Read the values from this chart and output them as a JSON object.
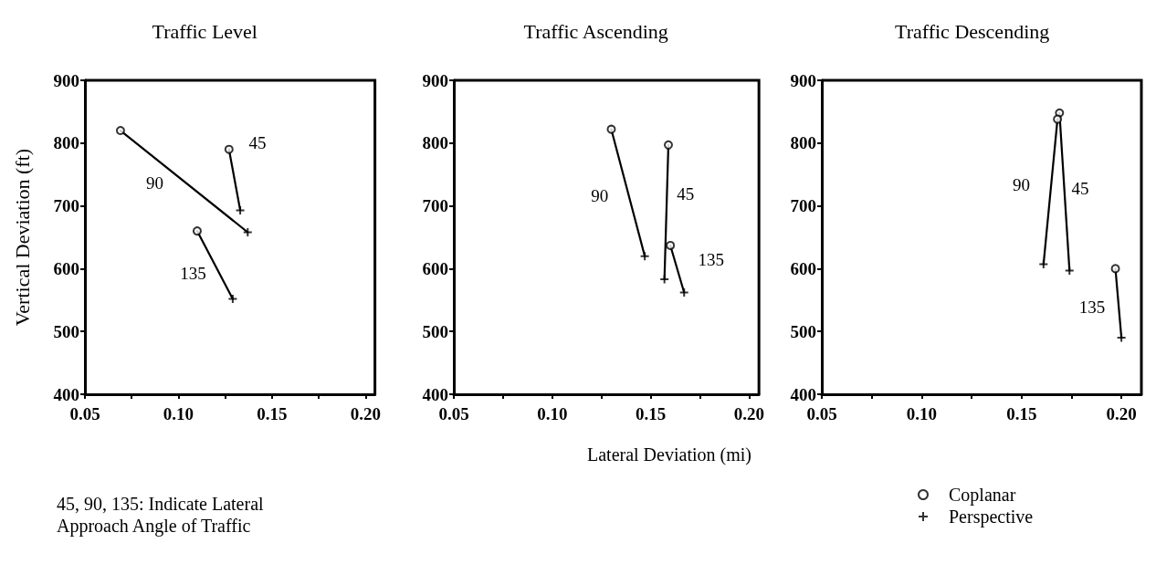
{
  "chart_data": [
    {
      "type": "scatter",
      "title": "Traffic Level",
      "ylabel": "Vertical Deviation (ft)",
      "xlim": [
        0.05,
        0.205
      ],
      "ylim": [
        400,
        900
      ],
      "xticks": [
        {
          "value": 0.05,
          "label": "0.05"
        },
        {
          "value": 0.075,
          "label": null
        },
        {
          "value": 0.1,
          "label": "0.10"
        },
        {
          "value": 0.125,
          "label": null
        },
        {
          "value": 0.15,
          "label": "0.15"
        },
        {
          "value": 0.175,
          "label": null
        },
        {
          "value": 0.2,
          "label": "0.20"
        }
      ],
      "yticks": [
        400,
        500,
        600,
        700,
        800,
        900
      ],
      "grid": false,
      "legend": false,
      "series": [
        {
          "marker": "circle",
          "color": "#000000",
          "x": [
            0.069,
            0.127,
            0.11
          ],
          "values": [
            820,
            790,
            660
          ]
        },
        {
          "marker": "cross",
          "color": "#000000",
          "x": [
            0.133,
            0.137,
            0.129
          ],
          "values": [
            693,
            658,
            552
          ]
        },
        {
          "type": "line",
          "marker": "none",
          "color": "#000000",
          "x": [
            0.069,
            0.137
          ],
          "values": [
            820,
            658
          ]
        },
        {
          "type": "line",
          "marker": "none",
          "color": "#000000",
          "x": [
            0.127,
            0.133
          ],
          "values": [
            790,
            693
          ]
        },
        {
          "type": "line",
          "marker": "none",
          "color": "#000000",
          "x": [
            0.11,
            0.129
          ],
          "values": [
            660,
            552
          ]
        }
      ],
      "annotations": [
        {
          "text": "90",
          "x": 0.103,
          "y": 739
        },
        {
          "text": "45",
          "x": 0.13,
          "y": 742
        },
        {
          "text": "135",
          "x": 0.12,
          "y": 606
        },
        "45, 90, 135: Indicate Lateral Approach Angle of Traffic"
      ]
    },
    {
      "type": "scatter",
      "title": "Traffic Ascending",
      "xlabel": "Lateral Deviation (mi)",
      "xlim": [
        0.05,
        0.205
      ],
      "ylim": [
        400,
        900
      ],
      "xticks": [
        {
          "value": 0.05,
          "label": "0.05"
        },
        {
          "value": 0.075,
          "label": null
        },
        {
          "value": 0.1,
          "label": "0.10"
        },
        {
          "value": 0.125,
          "label": null
        },
        {
          "value": 0.15,
          "label": "0.15"
        },
        {
          "value": 0.175,
          "label": null
        },
        {
          "value": 0.2,
          "label": "0.20"
        }
      ],
      "yticks": [
        400,
        500,
        600,
        700,
        800,
        900
      ],
      "grid": false,
      "legend": false,
      "series": [
        {
          "marker": "circle",
          "color": "#000000",
          "x": [
            0.13,
            0.159,
            0.16
          ],
          "values": [
            822,
            797,
            637
          ]
        },
        {
          "marker": "cross",
          "color": "#000000",
          "x": [
            0.147,
            0.157,
            0.167
          ],
          "values": [
            620,
            583,
            562
          ]
        },
        {
          "type": "line",
          "marker": "none",
          "color": "#000000",
          "x": [
            0.13,
            0.147
          ],
          "values": [
            822,
            620
          ]
        },
        {
          "type": "line",
          "marker": "none",
          "color": "#000000",
          "x": [
            0.159,
            0.157
          ],
          "values": [
            797,
            583
          ]
        },
        {
          "type": "line",
          "marker": "none",
          "color": "#000000",
          "x": [
            0.16,
            0.167
          ],
          "values": [
            637,
            562
          ]
        }
      ],
      "annotations": [
        {
          "text": "90",
          "x": 0.139,
          "y": 721
        },
        {
          "text": "45",
          "x": 0.158,
          "y": 690
        },
        {
          "text": "135",
          "x": 0.164,
          "y": 600
        }
      ]
    },
    {
      "type": "scatter",
      "title": "Traffic Descending",
      "xlim": [
        0.05,
        0.21
      ],
      "ylim": [
        400,
        900
      ],
      "xticks": [
        {
          "value": 0.05,
          "label": "0.05"
        },
        {
          "value": 0.075,
          "label": null
        },
        {
          "value": 0.1,
          "label": "0.10"
        },
        {
          "value": 0.125,
          "label": null
        },
        {
          "value": 0.15,
          "label": "0.15"
        },
        {
          "value": 0.175,
          "label": null
        },
        {
          "value": 0.2,
          "label": "0.20"
        }
      ],
      "yticks": [
        400,
        500,
        600,
        700,
        800,
        900
      ],
      "grid": false,
      "legend": "bottom right",
      "series": [
        {
          "name": "Coplanar",
          "marker": "circle",
          "color": "#000000",
          "x": [
            0.169,
            0.168,
            0.197
          ],
          "values": [
            848,
            838,
            600
          ]
        },
        {
          "name": "Perspective",
          "marker": "cross",
          "color": "#000000",
          "x": [
            0.174,
            0.161,
            0.2
          ],
          "values": [
            597,
            607,
            490
          ]
        },
        {
          "type": "line",
          "marker": "none",
          "color": "#000000",
          "x": [
            0.168,
            0.161
          ],
          "values": [
            838,
            607
          ]
        },
        {
          "type": "line",
          "marker": "none",
          "color": "#000000",
          "x": [
            0.169,
            0.174
          ],
          "values": [
            848,
            597
          ]
        },
        {
          "type": "line",
          "marker": "none",
          "color": "#000000",
          "x": [
            0.197,
            0.2
          ],
          "values": [
            600,
            490
          ]
        }
      ],
      "annotations": [
        {
          "text": "90",
          "x": 0.165,
          "y": 723
        },
        {
          "text": "45",
          "x": 0.172,
          "y": 723
        },
        {
          "text": "135",
          "x": 0.199,
          "y": 545
        }
      ]
    }
  ]
}
